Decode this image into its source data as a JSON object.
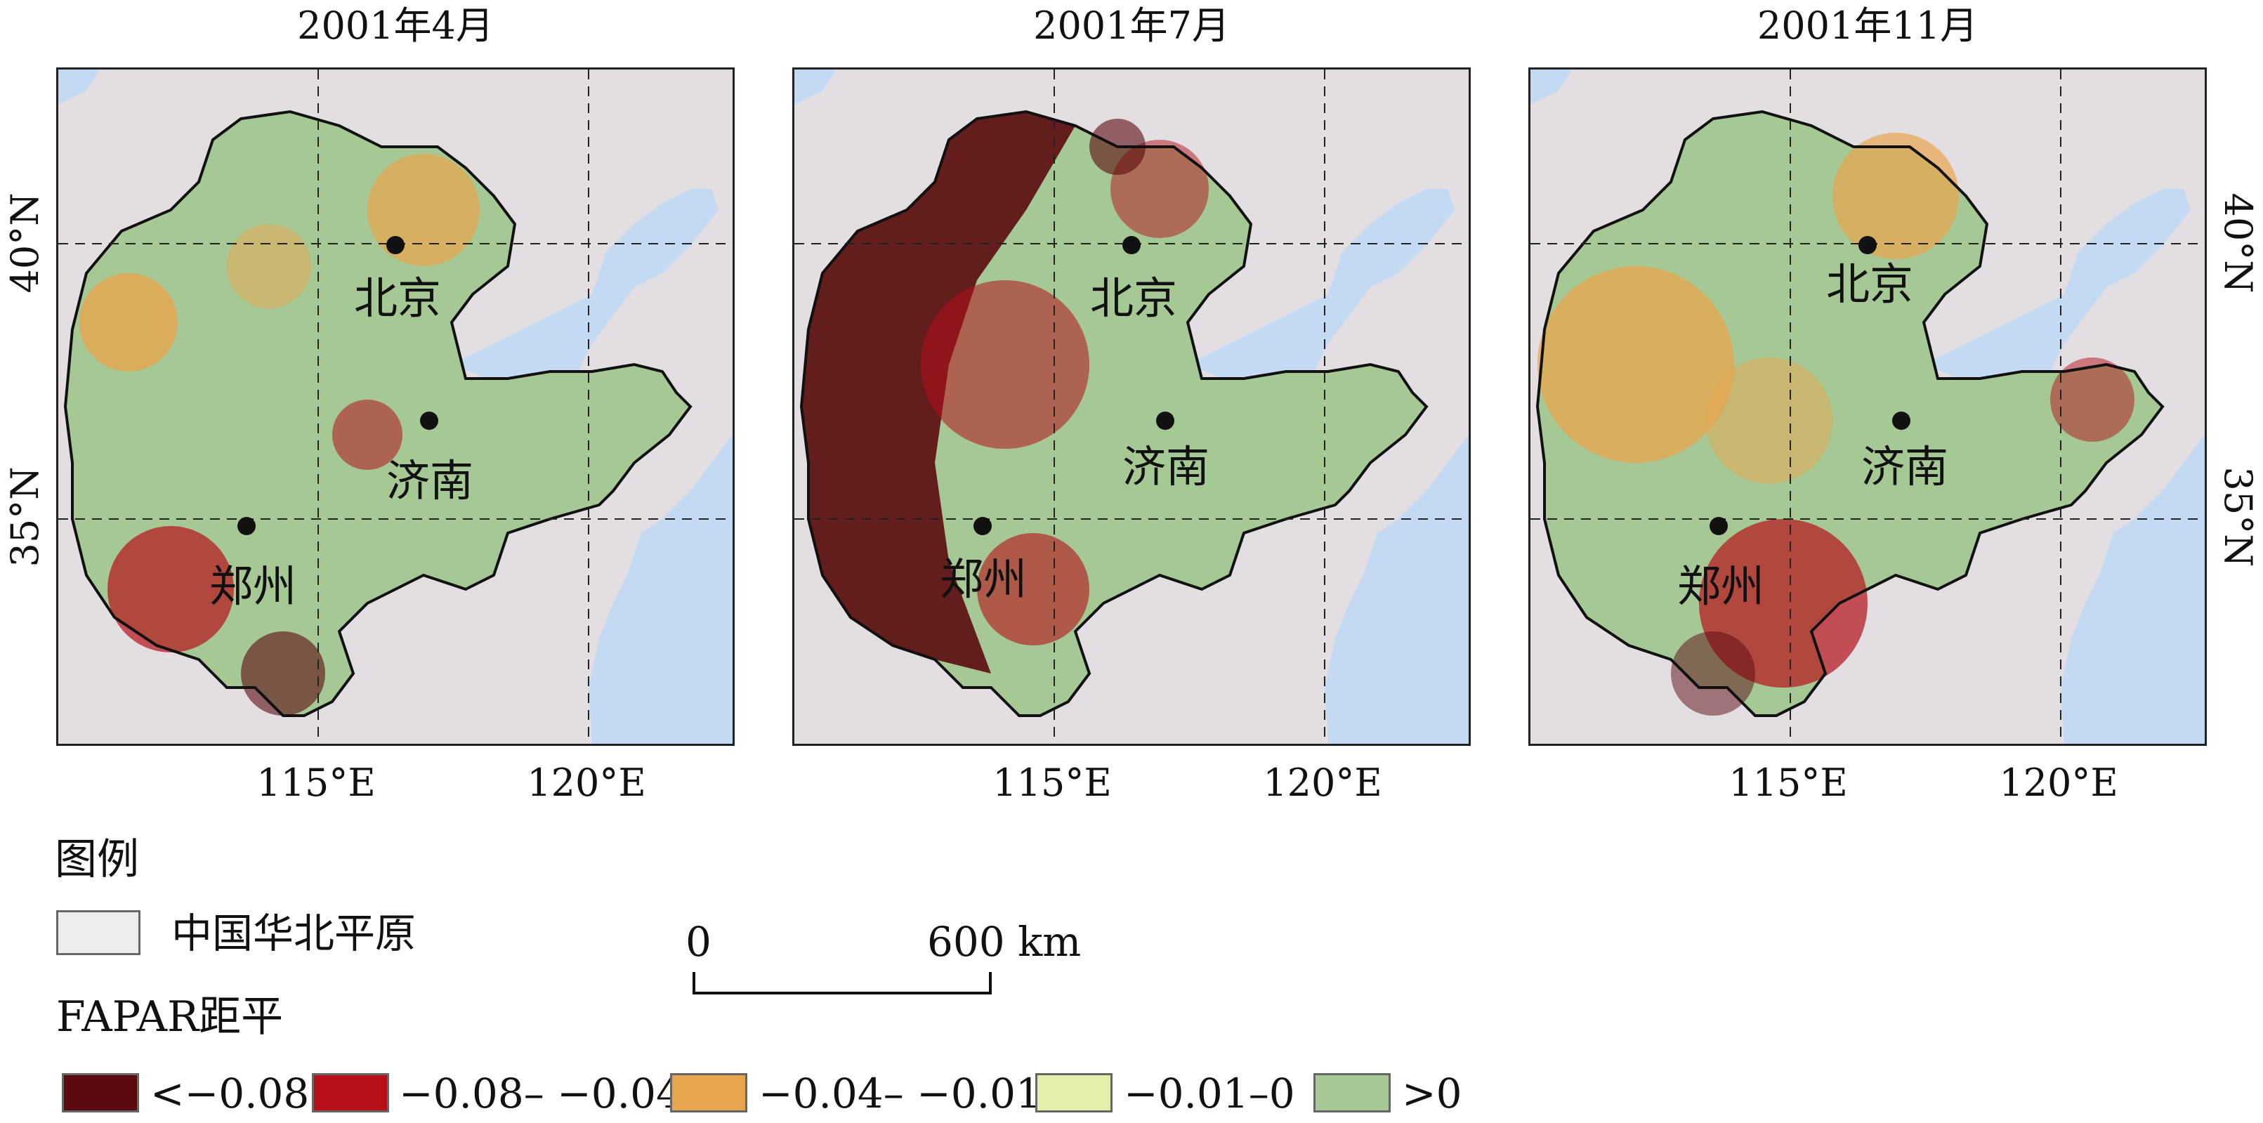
{
  "panels": [
    {
      "title": "2001年4月",
      "theme": "april"
    },
    {
      "title": "2001年7月",
      "theme": "july"
    },
    {
      "title": "2001年11月",
      "theme": "november"
    }
  ],
  "axes": {
    "x_ticks": [
      "115°E",
      "120°E"
    ],
    "y_ticks": [
      "40°N",
      "35°N"
    ]
  },
  "cities": [
    {
      "name": "北京"
    },
    {
      "name": "济南"
    },
    {
      "name": "郑州"
    }
  ],
  "legend": {
    "title": "图例",
    "region_label": "中国华北平原",
    "region_color": "#eeeded",
    "scale_start": "0",
    "scale_end": "600 km",
    "fapar_title": "FAPAR距平",
    "classes": [
      {
        "label": "<−0.08",
        "color": "#5c0a0f"
      },
      {
        "label": "−0.08– −0.04",
        "color": "#b60f18"
      },
      {
        "label": "−0.04– −0.01",
        "color": "#e9a54e"
      },
      {
        "label": "−0.01–0",
        "color": "#e4eeaa"
      },
      {
        "label": ">0",
        "color": "#a5c894"
      }
    ]
  },
  "colors": {
    "sea": "#c4daf3",
    "outside_land": "#e2dee2",
    "coast_line": "#8a8a8a"
  }
}
